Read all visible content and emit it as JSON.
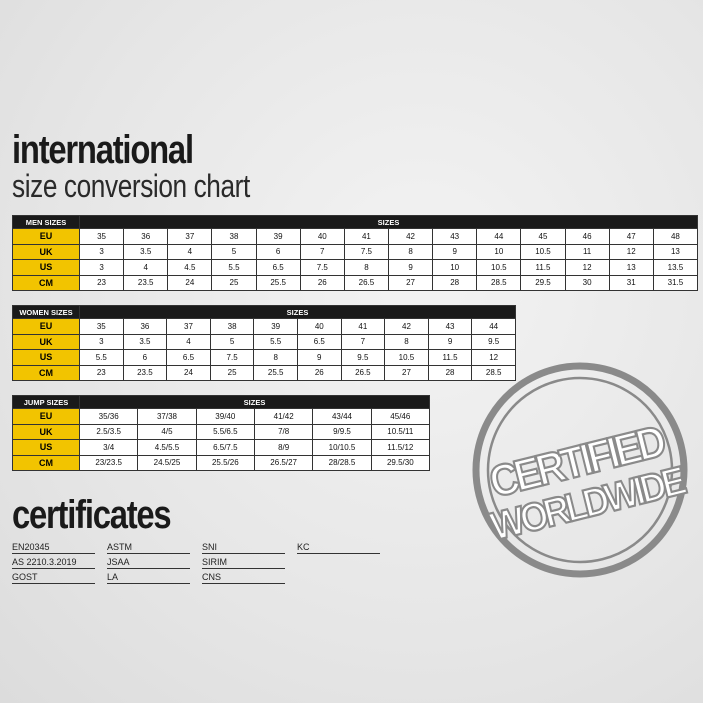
{
  "title": "international",
  "subtitle": "size conversion chart",
  "tables": [
    {
      "name": "MEN SIZES",
      "header": "SIZES",
      "rows": [
        {
          "label": "EU",
          "values": [
            "35",
            "36",
            "37",
            "38",
            "39",
            "40",
            "41",
            "42",
            "43",
            "44",
            "45",
            "46",
            "47",
            "48"
          ]
        },
        {
          "label": "UK",
          "values": [
            "3",
            "3.5",
            "4",
            "5",
            "6",
            "7",
            "7.5",
            "8",
            "9",
            "10",
            "10.5",
            "11",
            "12",
            "13"
          ]
        },
        {
          "label": "US",
          "values": [
            "3",
            "4",
            "4.5",
            "5.5",
            "6.5",
            "7.5",
            "8",
            "9",
            "10",
            "10.5",
            "11.5",
            "12",
            "13",
            "13.5"
          ]
        },
        {
          "label": "CM",
          "values": [
            "23",
            "23.5",
            "24",
            "25",
            "25.5",
            "26",
            "26.5",
            "27",
            "28",
            "28.5",
            "29.5",
            "30",
            "31",
            "31.5"
          ]
        }
      ]
    },
    {
      "name": "WOMEN SIZES",
      "header": "SIZES",
      "rows": [
        {
          "label": "EU",
          "values": [
            "35",
            "36",
            "37",
            "38",
            "39",
            "40",
            "41",
            "42",
            "43",
            "44"
          ]
        },
        {
          "label": "UK",
          "values": [
            "3",
            "3.5",
            "4",
            "5",
            "5.5",
            "6.5",
            "7",
            "8",
            "9",
            "9.5"
          ]
        },
        {
          "label": "US",
          "values": [
            "5.5",
            "6",
            "6.5",
            "7.5",
            "8",
            "9",
            "9.5",
            "10.5",
            "11.5",
            "12"
          ]
        },
        {
          "label": "CM",
          "values": [
            "23",
            "23.5",
            "24",
            "25",
            "25.5",
            "26",
            "26.5",
            "27",
            "28",
            "28.5"
          ]
        }
      ]
    },
    {
      "name": "JUMP SIZES",
      "header": "SIZES",
      "rows": [
        {
          "label": "EU",
          "values": [
            "35/36",
            "37/38",
            "39/40",
            "41/42",
            "43/44",
            "45/46"
          ]
        },
        {
          "label": "UK",
          "values": [
            "2.5/3.5",
            "4/5",
            "5.5/6.5",
            "7/8",
            "9/9.5",
            "10.5/11"
          ]
        },
        {
          "label": "US",
          "values": [
            "3/4",
            "4.5/5.5",
            "6.5/7.5",
            "8/9",
            "10/10.5",
            "11.5/12"
          ]
        },
        {
          "label": "CM",
          "values": [
            "23/23.5",
            "24.5/25",
            "25.5/26",
            "26.5/27",
            "28/28.5",
            "29.5/30"
          ]
        }
      ]
    }
  ],
  "certificates_title": "certificates",
  "certificates": [
    [
      "EN20345",
      "AS 2210.3.2019",
      "GOST"
    ],
    [
      "ASTM",
      "JSAA",
      "LA"
    ],
    [
      "SNI",
      "SIRIM",
      "CNS"
    ],
    [
      "KC"
    ]
  ],
  "stamp": {
    "line1": "CERTIFIED",
    "line2": "WORLDWIDE"
  },
  "colors": {
    "label_bg": "#f2c400",
    "header_bg": "#1a1a1a",
    "stamp": "#8a8a8a"
  }
}
